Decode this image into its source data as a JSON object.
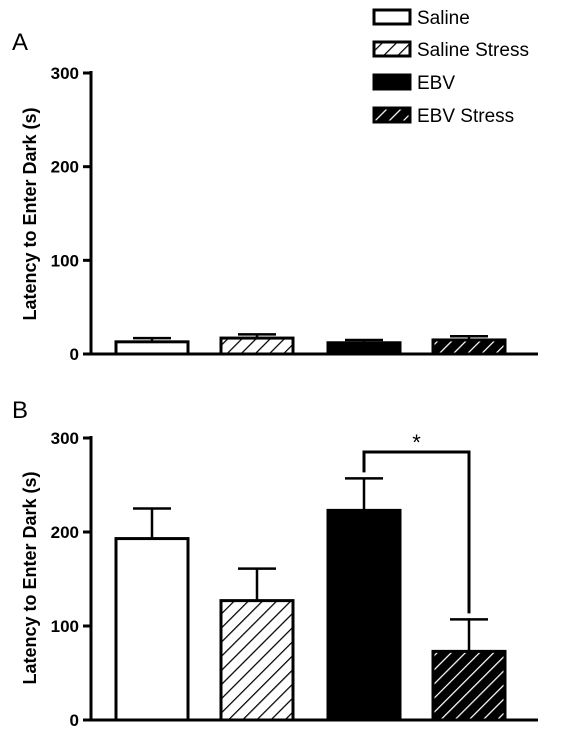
{
  "legend": [
    {
      "label": "Saline",
      "pattern": "solid-white"
    },
    {
      "label": "Saline Stress",
      "pattern": "hatch-white"
    },
    {
      "label": "EBV",
      "pattern": "solid-black"
    },
    {
      "label": "EBV Stress",
      "pattern": "hatch-black"
    }
  ],
  "colors": {
    "fill_black": "#000000",
    "fill_white": "#ffffff",
    "stroke": "#000000"
  },
  "chart_data": [
    {
      "type": "bar",
      "panel_label": "A",
      "ylabel": "Latency to Enter Dark (s)",
      "ylim": [
        0,
        300
      ],
      "yticks": [
        "0",
        "100",
        "200",
        "300"
      ],
      "categories": [
        "Saline",
        "Saline Stress",
        "EBV",
        "EBV Stress"
      ],
      "values": [
        13,
        17,
        12,
        15
      ],
      "errors": [
        4,
        4,
        3,
        4
      ],
      "significance": []
    },
    {
      "type": "bar",
      "panel_label": "B",
      "ylabel": "Latency to Enter Dark (s)",
      "ylim": [
        0,
        300
      ],
      "yticks": [
        "0",
        "100",
        "200",
        "300"
      ],
      "categories": [
        "Saline",
        "Saline Stress",
        "EBV",
        "EBV Stress"
      ],
      "values": [
        193,
        127,
        223,
        73
      ],
      "errors": [
        32,
        34,
        34,
        34
      ],
      "significance": [
        {
          "from": 2,
          "to": 3,
          "label": "*"
        }
      ]
    }
  ]
}
